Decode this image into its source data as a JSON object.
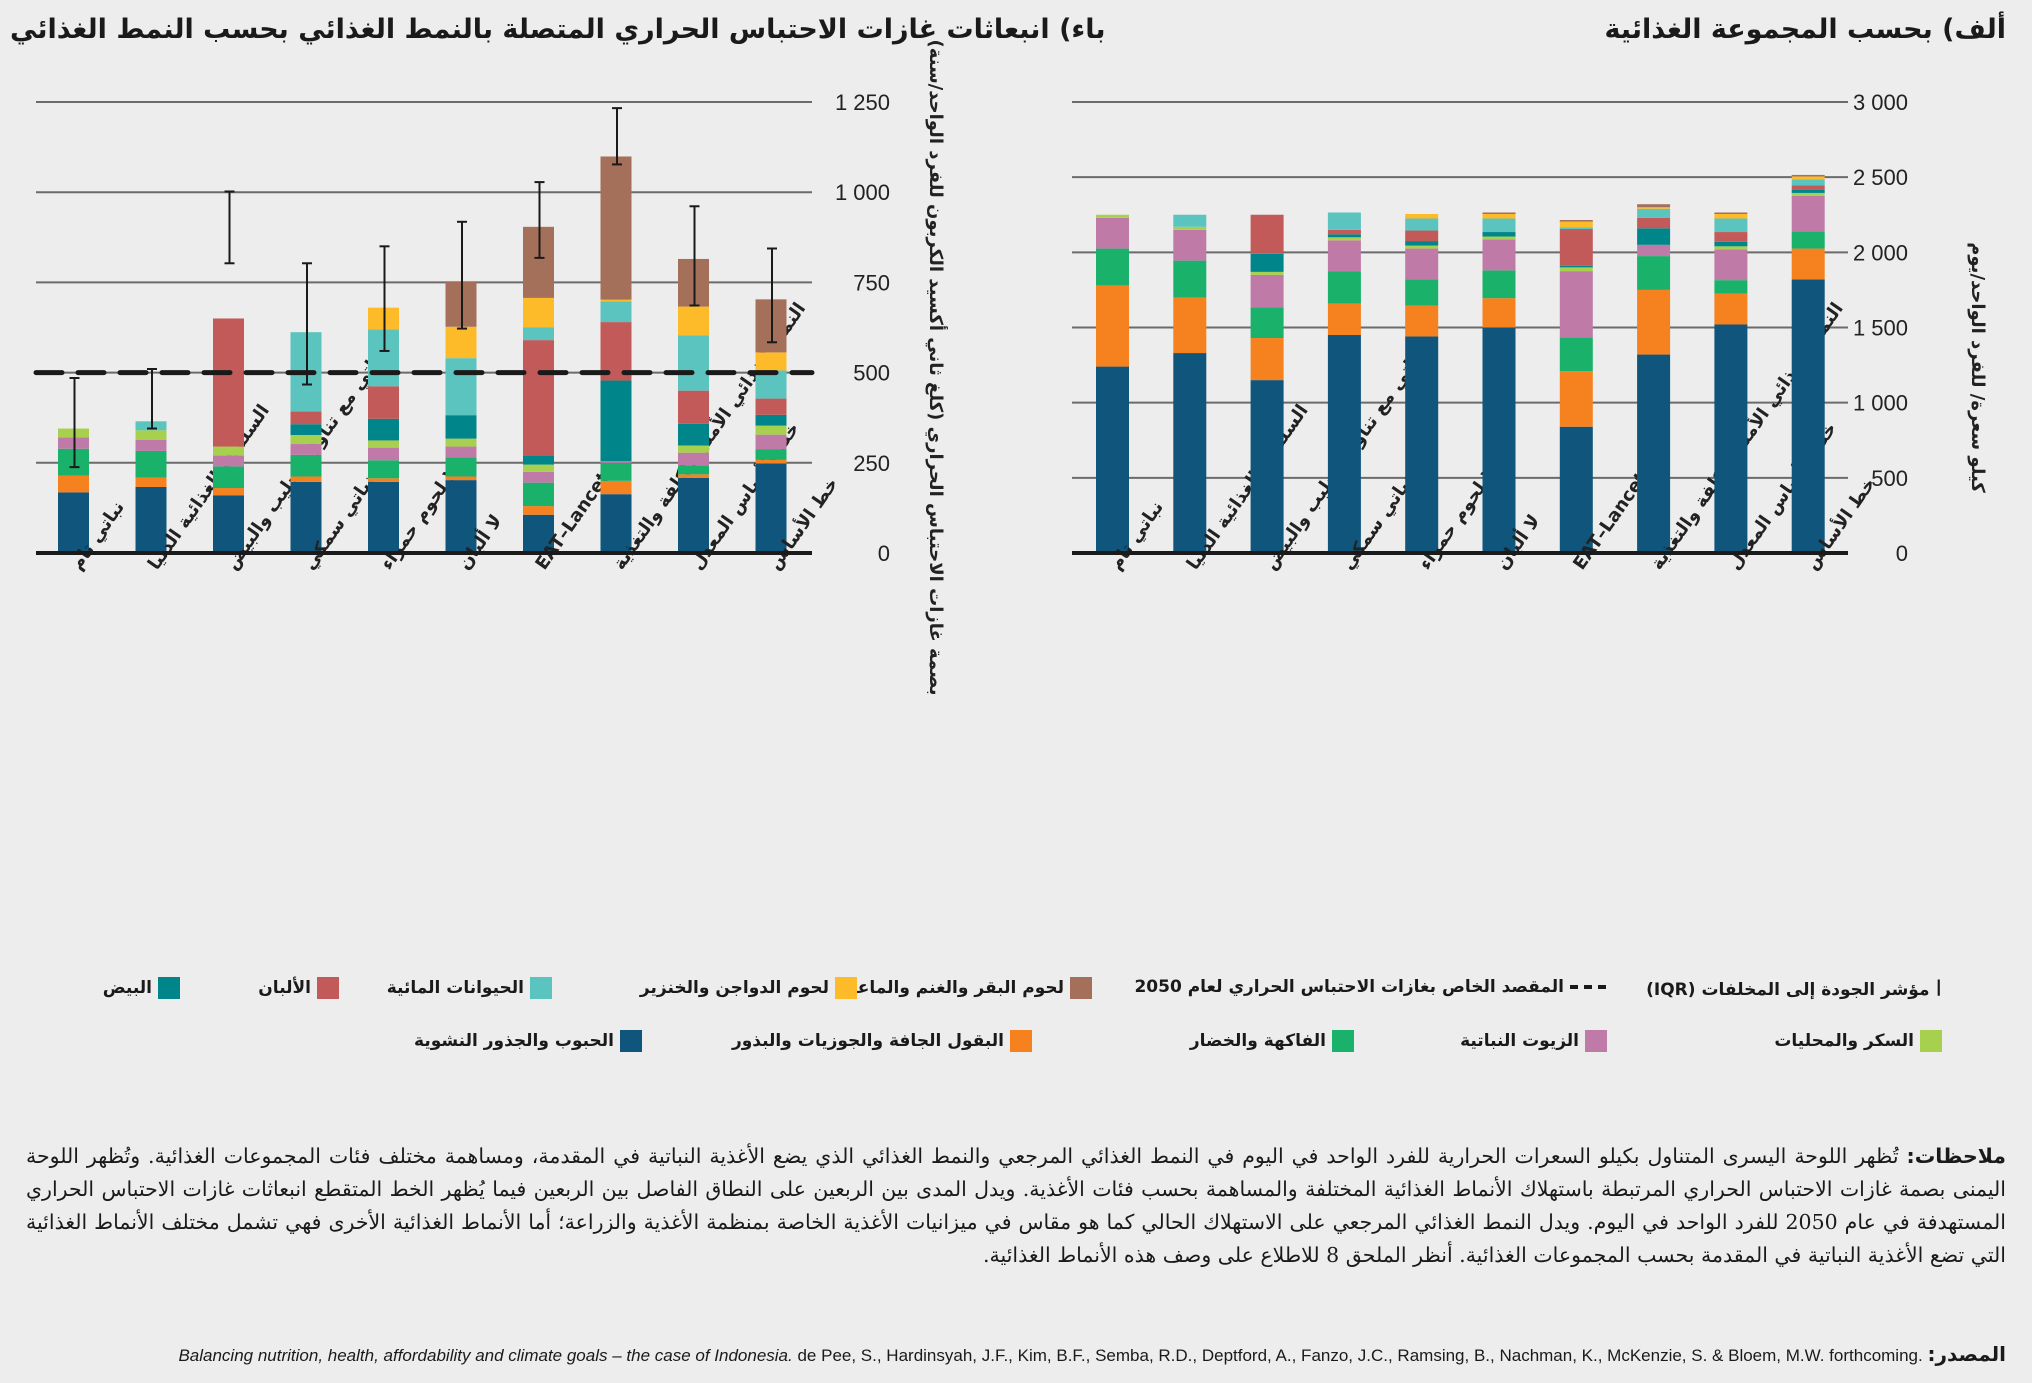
{
  "panel_a_title": "ألف) بحسب المجموعة الغذائية",
  "panel_b_title": "باء) انبعاثات غازات الاحتباس الحراري المتصلة بالنمط الغذائي بحسب النمط الغذائي",
  "series_colors": {
    "grains": "#0f557c",
    "legumes": "#f5821f",
    "fruitveg": "#1ab26b",
    "oils": "#c07aa8",
    "sugar": "#a8d04f",
    "eggs": "#00868a",
    "dairy": "#c15a58",
    "fish": "#5cc4be",
    "poultry": "#fdba29",
    "beef": "#a4705a"
  },
  "legend": {
    "iqr": "مؤشر الجودة إلى المخلفات (IQR)",
    "target": "المقصد الخاص بغازات الاحتباس الحراري لعام 2050",
    "beef": "لحوم البقر والغنم والماعز",
    "poultry": "لحوم الدواجن والخنزير",
    "fish": "الحيوانات المائية",
    "dairy": "الألبان",
    "eggs": "البيض",
    "sugar": "السكر والمحليات",
    "oils": "الزيوت النباتية",
    "fruitveg": "الفاكهة والخضار",
    "legumes": "البقول الجافة والجوزيات والبذور",
    "grains": "الحبوب والجذور النشوية"
  },
  "notes": {
    "label": "ملاحظات:",
    "text": "تُظهر اللوحة اليسرى المتناول بكيلو السعرات الحرارية للفرد الواحد في اليوم في النمط الغذائي المرجعي والنمط الغذائي الذي يضع الأغذية النباتية في المقدمة، ومساهمة مختلف فئات المجموعات الغذائية. وتُظهر اللوحة اليمنى بصمة غازات الاحتباس الحراري المرتبطة باستهلاك الأنماط الغذائية المختلفة والمساهمة بحسب فئات الأغذية. ويدل المدى بين الربعين على النطاق الفاصل بين الربعين فيما يُظهر الخط المتقطع انبعاثات غازات الاحتباس الحراري المستهدفة في عام 2050 للفرد الواحد في اليوم. ويدل النمط الغذائي المرجعي على الاستهلاك الحالي كما هو مقاس في ميزانيات الأغذية الخاصة بمنظمة الأغذية والزراعة؛ أما الأنماط الغذائية الأخرى فهي تشمل مختلف الأنماط الغذائية التي تضع الأغذية النباتية في المقدمة بحسب المجموعات الغذائية. أنظر الملحق 8 للاطلاع على وصف هذه الأنماط الغذائية."
  },
  "source": {
    "label": "المصدر:",
    "authors": "de Pee, S., Hardinsyah, J.F., Kim, B.F., Semba, R.D., Deptford, A., Fanzo, J.C., Ramsing, B., Nachman, K., McKenzie, S. & Bloem, M.W. forthcoming.",
    "title": "Balancing nutrition, health, affordability and climate goals – the case of Indonesia."
  },
  "chart_data": [
    {
      "id": "panel_a",
      "type": "bar",
      "stacked": true,
      "title": "ألف) بحسب المجموعة الغذائية",
      "ylabel": "كيلو سعرة/ للفرد الواحد/يوم",
      "ylim": [
        0,
        3000
      ],
      "yticks": [
        0,
        500,
        1000,
        1500,
        2000,
        2500,
        3000
      ],
      "ytick_labels": [
        "0",
        "500",
        "1 000",
        "1 500",
        "2 000",
        "2 500",
        "3 000"
      ],
      "grid": true,
      "categories": [
        "نباتي تام",
        "السلسلة الغذائية الدنيا",
        "نباتي مع تناول الحليب والبيض",
        "نباتي سمكي",
        "لا لحوم حمراء",
        "لا ألبان",
        "EAT–Lancet",
        "النمط الغذائي الأمثل للكلفة والتغذية",
        "خط الأساس المعدل",
        "خط الأساس"
      ],
      "series": [
        {
          "key": "grains",
          "name": "الحبوب والجذور النشوية",
          "values": [
            1240,
            1330,
            1150,
            1450,
            1440,
            1500,
            840,
            1320,
            1520,
            1820
          ]
        },
        {
          "key": "legumes",
          "name": "البقول الجافة والجوزيات والبذور",
          "values": [
            540,
            370,
            280,
            210,
            205,
            195,
            370,
            430,
            205,
            205
          ]
        },
        {
          "key": "fruitveg",
          "name": "الفاكهة والخضار",
          "values": [
            245,
            245,
            205,
            215,
            175,
            185,
            225,
            225,
            90,
            115
          ]
        },
        {
          "key": "oils",
          "name": "الزيوت النباتية",
          "values": [
            205,
            205,
            215,
            205,
            205,
            205,
            440,
            75,
            205,
            235
          ]
        },
        {
          "key": "sugar",
          "name": "السكر والمحليات",
          "values": [
            20,
            20,
            20,
            20,
            20,
            20,
            25,
            0,
            20,
            20
          ]
        },
        {
          "key": "eggs",
          "name": "البيض",
          "values": [
            0,
            0,
            120,
            20,
            30,
            30,
            10,
            110,
            30,
            20
          ]
        },
        {
          "key": "dairy",
          "name": "الألبان",
          "values": [
            0,
            0,
            260,
            30,
            70,
            0,
            245,
            70,
            65,
            30
          ]
        },
        {
          "key": "fish",
          "name": "الحيوانات المائية",
          "values": [
            0,
            80,
            0,
            115,
            80,
            90,
            10,
            60,
            90,
            40
          ]
        },
        {
          "key": "poultry",
          "name": "لحوم الدواجن والخنزير",
          "values": [
            0,
            0,
            0,
            0,
            30,
            30,
            40,
            10,
            30,
            20
          ]
        },
        {
          "key": "beef",
          "name": "لحوم البقر والغنم والماعز",
          "values": [
            0,
            0,
            0,
            0,
            0,
            10,
            10,
            20,
            10,
            10
          ]
        }
      ]
    },
    {
      "id": "panel_b",
      "type": "bar",
      "stacked": true,
      "title": "باء) انبعاثات غازات الاحتباس الحراري المتصلة بالنمط الغذائي بحسب النمط الغذائي",
      "ylabel": "بصمة غازات الاحتباس الحراري (كلغ ثاني أكسيد الكربون للفرد الواحد/سنة)",
      "ylim": [
        0,
        1250
      ],
      "yticks": [
        0,
        250,
        500,
        750,
        1000,
        1250
      ],
      "ytick_labels": [
        "0",
        "250",
        "500",
        "750",
        "1 000",
        "1 250"
      ],
      "grid": true,
      "target_line": 500,
      "categories": [
        "نباتي تام",
        "السلسلة الغذائية الدنيا",
        "نباتي مع تناول الحليب والبيض",
        "نباتي سمكي",
        "لا لحوم حمراء",
        "لا ألبان",
        "EAT–Lancet",
        "النمط الغذائي الأمثل للكلفة والتغذية",
        "خط الأساس المعدل",
        "خط الأساس"
      ],
      "series": [
        {
          "key": "grains",
          "name": "الحبوب والجذور النشوية",
          "values": [
            168,
            183,
            160,
            197,
            197,
            202,
            106,
            163,
            208,
            248
          ]
        },
        {
          "key": "legumes",
          "name": "البقول الجافة والجوزيات والبذور",
          "values": [
            46,
            26,
            20,
            15,
            10,
            10,
            24,
            37,
            10,
            10
          ]
        },
        {
          "key": "fruitveg",
          "name": "الفاكهة والخضار",
          "values": [
            75,
            74,
            60,
            60,
            50,
            53,
            65,
            50,
            25,
            30
          ]
        },
        {
          "key": "oils",
          "name": "الزيوت النباتية",
          "values": [
            31,
            31,
            30,
            30,
            35,
            30,
            30,
            5,
            35,
            40
          ]
        },
        {
          "key": "sugar",
          "name": "السكر والمحليات",
          "values": [
            25,
            26,
            25,
            25,
            20,
            22,
            20,
            0,
            20,
            25
          ]
        },
        {
          "key": "eggs",
          "name": "البيض",
          "values": [
            0,
            0,
            0,
            30,
            60,
            65,
            25,
            223,
            60,
            30
          ]
        },
        {
          "key": "dairy",
          "name": "الألبان",
          "values": [
            0,
            0,
            355,
            35,
            90,
            0,
            320,
            162,
            92,
            45
          ]
        },
        {
          "key": "fish",
          "name": "الحيوانات المائية",
          "values": [
            0,
            25,
            0,
            220,
            158,
            158,
            35,
            57,
            153,
            78
          ]
        },
        {
          "key": "poultry",
          "name": "لحوم الدواجن والخنزير",
          "values": [
            0,
            0,
            0,
            0,
            60,
            87,
            82,
            5,
            80,
            50
          ]
        },
        {
          "key": "beef",
          "name": "لحوم البقر والغنم والماعز",
          "values": [
            0,
            0,
            0,
            0,
            0,
            126,
            197,
            397,
            132,
            147
          ]
        }
      ],
      "error_bars": [
        {
          "low": 238,
          "high": 485
        },
        {
          "low": 345,
          "high": 510
        },
        {
          "low": 803,
          "high": 1002
        },
        {
          "low": 467,
          "high": 803
        },
        {
          "low": 560,
          "high": 850
        },
        {
          "low": 622,
          "high": 918
        },
        {
          "low": 818,
          "high": 1028
        },
        {
          "low": 1077,
          "high": 1233
        },
        {
          "low": 686,
          "high": 961
        },
        {
          "low": 584,
          "high": 844
        }
      ]
    }
  ]
}
